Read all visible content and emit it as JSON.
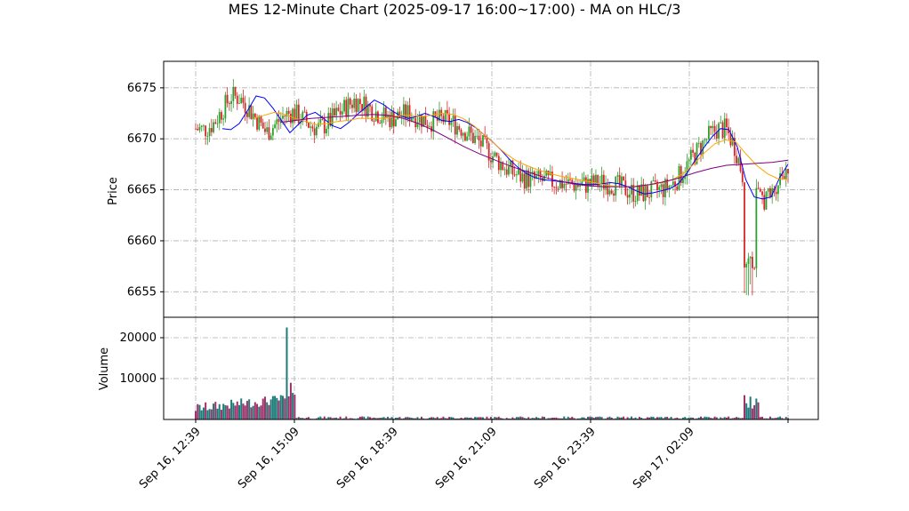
{
  "chart_data": {
    "type": "candlestick",
    "title": "MES 12-Minute Chart (2025-09-17 16:00~17:00) - MA on HLC/3",
    "price_panel": {
      "ylabel": "Price",
      "ylim": [
        6652.5,
        6677.6
      ],
      "yticks": [
        6655,
        6660,
        6665,
        6670,
        6675
      ],
      "grid": true,
      "up_color": "#2ca02c",
      "down_color": "#d62728",
      "ma_series": [
        {
          "color": "#0000ff",
          "values": [
            6671.0,
            6670.9,
            6671.5,
            6672.8,
            6674.2,
            6674.0,
            6673.0,
            6671.8,
            6670.6,
            6671.4,
            6672.3,
            6672.6,
            6672.0,
            6671.3,
            6671.0,
            6671.6,
            6672.4,
            6673.1,
            6673.8,
            6673.4,
            6672.8,
            6672.3,
            6672.0,
            6672.2,
            6672.5,
            6672.2,
            6671.8,
            6671.7,
            6671.9,
            6671.6,
            6671.1,
            6670.4,
            6669.7,
            6668.9,
            6668.0,
            6667.2,
            6666.6,
            6666.2,
            6666.0,
            6665.9,
            6665.8,
            6665.7,
            6665.6,
            6665.5,
            6665.5,
            6665.6,
            6665.7,
            6665.6,
            6665.3,
            6664.9,
            6664.6,
            6664.7,
            6664.9,
            6665.1,
            6665.6,
            6666.6,
            6667.9,
            6669.1,
            6670.2,
            6671.0,
            6670.9,
            6669.2,
            6666.0,
            6664.3,
            6664.1,
            6664.3,
            6666.2,
            6667.5
          ]
        },
        {
          "color": "#ffa500",
          "values": [
            6672.0,
            6672.3,
            6672.6,
            6672.4,
            6672.0,
            6671.7,
            6671.4,
            6671.5,
            6671.7,
            6671.8,
            6672.0,
            6672.0,
            6672.0,
            6672.1,
            6672.3,
            6672.3,
            6672.2,
            6672.3,
            6672.5,
            6672.4,
            6672.0,
            6671.3,
            6670.4,
            6669.5,
            6668.6,
            6667.9,
            6667.4,
            6667.0,
            6666.7,
            6666.4,
            6666.2,
            6666.0,
            6665.8,
            6665.6,
            6665.4,
            6665.3,
            6665.3,
            6665.4,
            6665.5,
            6665.7,
            6666.0,
            6666.6,
            6667.5,
            6668.6,
            6669.5,
            6669.9,
            6669.7,
            6668.5,
            6667.4,
            6666.6,
            6666.1,
            6666.0
          ]
        },
        {
          "color": "#800080",
          "values": [
            6671.6,
            6671.8,
            6672.0,
            6672.1,
            6672.2,
            6672.3,
            6672.4,
            6672.3,
            6672.0,
            6671.5,
            6670.8,
            6670.0,
            6669.2,
            6668.5,
            6667.9,
            6667.3,
            6666.8,
            6666.3,
            6665.9,
            6665.6,
            6665.4,
            6665.3,
            6665.3,
            6665.3,
            6665.5,
            6665.8,
            6666.2,
            6666.7,
            6667.1,
            6667.4,
            6667.5,
            6667.6,
            6667.7,
            6667.9
          ]
        }
      ]
    },
    "volume_panel": {
      "ylabel": "Volume",
      "ylim": [
        0,
        25000
      ],
      "yticks": [
        10000,
        20000
      ],
      "grid": true
    },
    "x_axis": {
      "tick_labels": [
        "Sep 16, 12:39",
        "Sep 16, 15:09",
        "Sep 16, 18:39",
        "Sep 16, 21:09",
        "Sep 16, 23:39",
        "Sep 17, 02:09"
      ],
      "bar_count": 300
    }
  }
}
